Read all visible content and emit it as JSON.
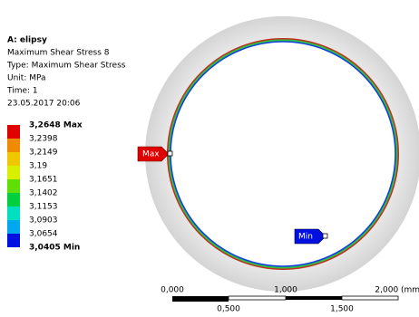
{
  "header": {
    "title": "A: elipsy",
    "lines": [
      "Maximum Shear Stress 8",
      "Type: Maximum Shear Stress",
      "Unit: MPa",
      "Time: 1",
      "23.05.2017 20:06"
    ]
  },
  "legend": {
    "labels": [
      "3,2648 Max",
      "3,2398",
      "3,2149",
      "3,19",
      "3,1651",
      "3,1402",
      "3,1153",
      "3,0903",
      "3,0654",
      "3,0405 Min"
    ],
    "colors": [
      "#e00000",
      "#f08a00",
      "#f0c800",
      "#d8f000",
      "#60e000",
      "#00d040",
      "#00e0c0",
      "#00a8f0",
      "#0010e0"
    ]
  },
  "annotations": {
    "max": "Max",
    "min": "Min"
  },
  "scale": {
    "top": [
      "0,000",
      "1,000",
      "2,000 (mm)"
    ],
    "bottom": [
      "0,500",
      "1,500"
    ]
  }
}
